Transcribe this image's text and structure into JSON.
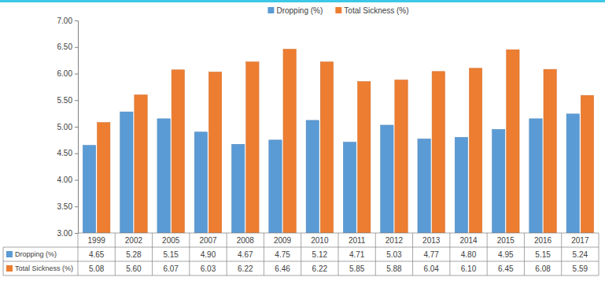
{
  "chart_data": {
    "type": "bar",
    "categories": [
      "1999",
      "2002",
      "2005",
      "2007",
      "2008",
      "2009",
      "2010",
      "2011",
      "2012",
      "2013",
      "2014",
      "2015",
      "2016",
      "2017"
    ],
    "series": [
      {
        "name": "Dropping (%)",
        "color": "#5b9bd5",
        "values": [
          4.65,
          5.28,
          5.15,
          4.9,
          4.67,
          4.75,
          5.12,
          4.71,
          5.03,
          4.77,
          4.8,
          4.95,
          5.15,
          5.24
        ],
        "value_labels": [
          "4.65",
          "5.28",
          "5.15",
          "4.90",
          "4.67",
          "4.75",
          "5.12",
          "4.71",
          "5.03",
          "4.77",
          "4.80",
          "4.95",
          "5.15",
          "5.24"
        ]
      },
      {
        "name": "Total Sickness (%)",
        "color": "#ed7d31",
        "values": [
          5.08,
          5.6,
          6.07,
          6.03,
          6.22,
          6.46,
          6.22,
          5.85,
          5.88,
          6.04,
          6.1,
          6.45,
          6.08,
          5.59
        ],
        "value_labels": [
          "5.08",
          "5.60",
          "6.07",
          "6.03",
          "6.22",
          "6.46",
          "6.22",
          "5.85",
          "5.88",
          "6.04",
          "6.10",
          "6.45",
          "6.08",
          "5.59"
        ]
      }
    ],
    "ylim": [
      3,
      7
    ],
    "yticks": [
      {
        "value": 3,
        "label": "3.00"
      },
      {
        "value": 3.5,
        "label": "3.50"
      },
      {
        "value": 4,
        "label": "4.00"
      },
      {
        "value": 4.5,
        "label": "4.50"
      },
      {
        "value": 5,
        "label": "5.00"
      },
      {
        "value": 5.5,
        "label": "5.50"
      },
      {
        "value": 6,
        "label": "6.00"
      },
      {
        "value": 6.5,
        "label": "6.50"
      },
      {
        "value": 7,
        "label": "7.00"
      }
    ],
    "grid": false,
    "legend": "top"
  }
}
